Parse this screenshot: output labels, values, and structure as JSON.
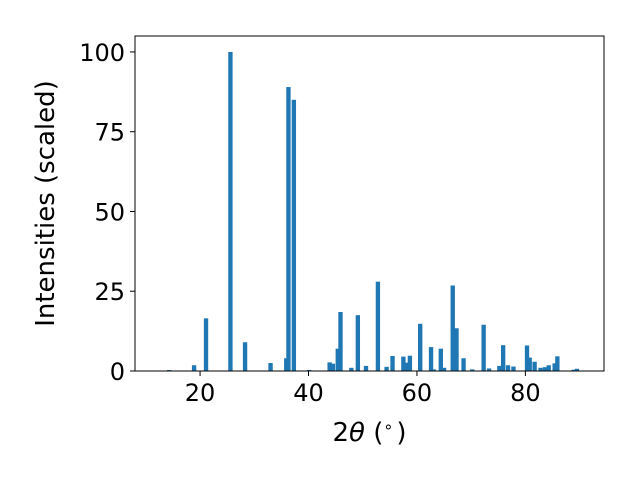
{
  "chart_data": {
    "type": "bar",
    "title": "",
    "xlabel_prefix": "2",
    "xlabel_theta": "θ",
    "xlabel_suffix": " (",
    "xlabel_degree": "∘",
    "xlabel_close": ")",
    "ylabel": "Intensities (scaled)",
    "xlim": [
      8,
      94.5
    ],
    "ylim": [
      0,
      105
    ],
    "xticks": [
      20,
      40,
      60,
      80
    ],
    "yticks": [
      0,
      25,
      50,
      75,
      100
    ],
    "xtick_labels": [
      "20",
      "40",
      "60",
      "80"
    ],
    "ytick_labels": [
      "0",
      "25",
      "50",
      "75",
      "100"
    ],
    "bar_width": 0.8,
    "grid": false,
    "bar_color": "#1f77b4",
    "x": [
      14.3,
      18.9,
      21.1,
      25.6,
      28.3,
      33.0,
      35.9,
      36.3,
      37.3,
      40.1,
      43.9,
      44.5,
      45.4,
      45.9,
      47.9,
      49.1,
      50.6,
      52.8,
      54.4,
      55.5,
      57.5,
      58.2,
      58.7,
      60.6,
      62.6,
      63.1,
      64.4,
      65.0,
      66.6,
      67.3,
      68.6,
      70.2,
      72.3,
      73.3,
      75.2,
      75.9,
      76.8,
      77.8,
      80.3,
      80.8,
      81.7,
      82.8,
      83.6,
      84.3,
      85.4,
      85.9,
      88.9,
      89.5
    ],
    "values": [
      0.3,
      1.8,
      16.5,
      100,
      9,
      2.5,
      4,
      89,
      85,
      0.3,
      2.7,
      2.3,
      7,
      18.5,
      1,
      17.5,
      1.6,
      28,
      1.3,
      4.7,
      4.5,
      2.6,
      4.8,
      14.8,
      7.5,
      0.5,
      7,
      1,
      26.8,
      13.4,
      4,
      0.5,
      14.5,
      0.8,
      1.6,
      8.1,
      1.8,
      1.4,
      8,
      4.2,
      2.9,
      1,
      1.2,
      1.8,
      2.4,
      4.6,
      0.4,
      0.7
    ]
  }
}
